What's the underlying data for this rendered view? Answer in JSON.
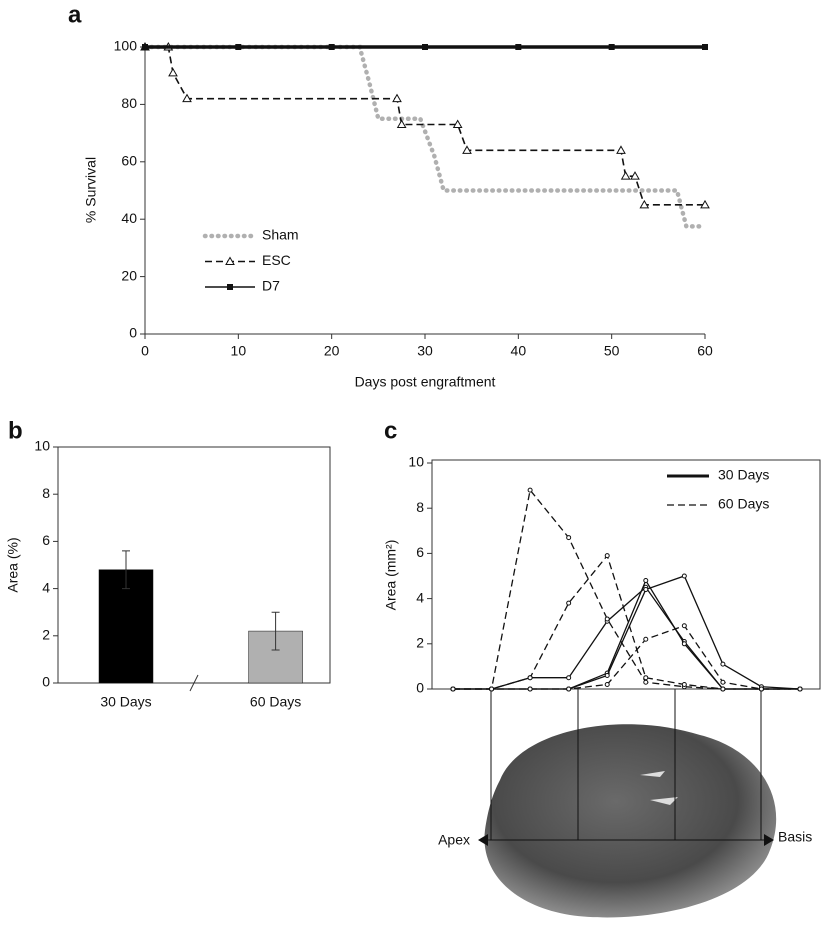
{
  "chart_data": [
    {
      "type": "line",
      "panel_label": "a",
      "xlabel": "Days post engraftment",
      "ylabel": "% Survival",
      "xlim": [
        0,
        60
      ],
      "xticks": [
        0,
        10,
        20,
        30,
        40,
        50,
        60
      ],
      "ylim": [
        0,
        100
      ],
      "yticks": [
        0,
        20,
        40,
        60,
        80,
        100
      ],
      "series": [
        {
          "name": "Sham",
          "color": "#b0b0b0",
          "style": "dotted",
          "marker": "none",
          "x": [
            0,
            23,
            24,
            25,
            29.5,
            31,
            32,
            57,
            58,
            60
          ],
          "values": [
            100,
            100,
            88,
            75,
            75,
            62,
            50,
            50,
            37.5,
            37.5
          ]
        },
        {
          "name": "ESC",
          "color": "#111111",
          "style": "dashed",
          "marker": "triangle",
          "x": [
            0,
            2.5,
            3,
            4.5,
            27,
            27.5,
            33.5,
            34.5,
            51,
            51.5,
            52.5,
            53.5,
            60
          ],
          "values": [
            100,
            100,
            91,
            82,
            82,
            73,
            73,
            64,
            64,
            55,
            55,
            45,
            45
          ]
        },
        {
          "name": "D7",
          "color": "#111111",
          "style": "solid",
          "marker": "square",
          "x": [
            0,
            10,
            20,
            30,
            40,
            50,
            60
          ],
          "values": [
            100,
            100,
            100,
            100,
            100,
            100,
            100
          ]
        }
      ]
    },
    {
      "type": "bar",
      "panel_label": "b",
      "ylabel": "Area (%)",
      "categories": [
        "30 Days",
        "60 Days"
      ],
      "values": [
        4.8,
        2.2
      ],
      "errors": [
        0.8,
        0.8
      ],
      "colors": [
        "#000000",
        "#b0b0b0"
      ],
      "ylim": [
        0,
        10
      ],
      "yticks": [
        0,
        2,
        4,
        6,
        8,
        10
      ]
    },
    {
      "type": "line",
      "panel_label": "c",
      "ylabel": "Area (mm²)",
      "categories": [
        null,
        null,
        null,
        null,
        null,
        null,
        null,
        null,
        null,
        null
      ],
      "ylim": [
        0,
        10
      ],
      "yticks": [
        0,
        2,
        4,
        6,
        8,
        10
      ],
      "legend": [
        {
          "label": "30 Days",
          "style": "solid"
        },
        {
          "label": "60 Days",
          "style": "dashed"
        }
      ],
      "series": [
        {
          "style": "solid",
          "values": [
            0,
            0,
            0.5,
            0.5,
            3.0,
            4.5,
            2.1,
            0,
            0,
            0
          ]
        },
        {
          "style": "solid",
          "values": [
            0,
            0,
            0,
            0,
            0.7,
            4.8,
            2.0,
            0,
            0,
            0
          ]
        },
        {
          "style": "solid",
          "values": [
            0,
            0,
            0,
            0,
            0.6,
            4.4,
            5.0,
            1.1,
            0.1,
            0
          ]
        },
        {
          "style": "dashed",
          "values": [
            0,
            0,
            8.8,
            6.7,
            3.1,
            0.3,
            0.1,
            0,
            0,
            0
          ]
        },
        {
          "style": "dashed",
          "values": [
            0,
            0,
            0.5,
            3.8,
            5.9,
            0.5,
            0.2,
            0,
            0,
            0
          ]
        },
        {
          "style": "dashed",
          "values": [
            0,
            0,
            0,
            0,
            0.2,
            2.2,
            2.8,
            0.3,
            0,
            0
          ]
        }
      ],
      "annotations": [
        "Apex",
        "Basis"
      ]
    }
  ]
}
